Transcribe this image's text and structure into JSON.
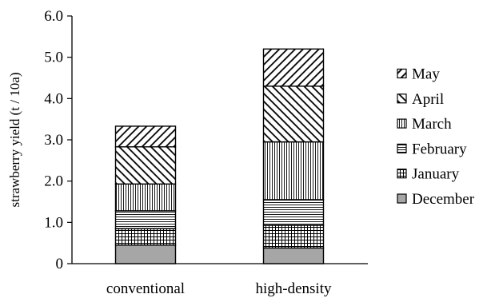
{
  "chart_data": {
    "type": "bar",
    "stacked": true,
    "categories": [
      "conventional",
      "high-density"
    ],
    "ylabel": "strawberry yield (t / 10a)",
    "xlabel": "",
    "ylim": [
      0,
      6
    ],
    "yticks": [
      0,
      1,
      2,
      3,
      4,
      5,
      6
    ],
    "ytick_labels": [
      "0",
      "1.0",
      "2.0",
      "3.0",
      "4.0",
      "5.0",
      "6.0"
    ],
    "grid": false,
    "legend_position": "right",
    "series": [
      {
        "name": "December",
        "values": [
          0.45,
          0.38
        ],
        "pattern": "solid-gray",
        "color": "#a6a6a6"
      },
      {
        "name": "January",
        "values": [
          0.4,
          0.55
        ],
        "pattern": "grid"
      },
      {
        "name": "February",
        "values": [
          0.43,
          0.62
        ],
        "pattern": "horizontal-lines"
      },
      {
        "name": "March",
        "values": [
          0.65,
          1.4
        ],
        "pattern": "vertical-lines"
      },
      {
        "name": "April",
        "values": [
          0.9,
          1.35
        ],
        "pattern": "wide-downward-diagonal"
      },
      {
        "name": "May",
        "values": [
          0.5,
          0.9
        ],
        "pattern": "upward-diagonal"
      }
    ]
  }
}
